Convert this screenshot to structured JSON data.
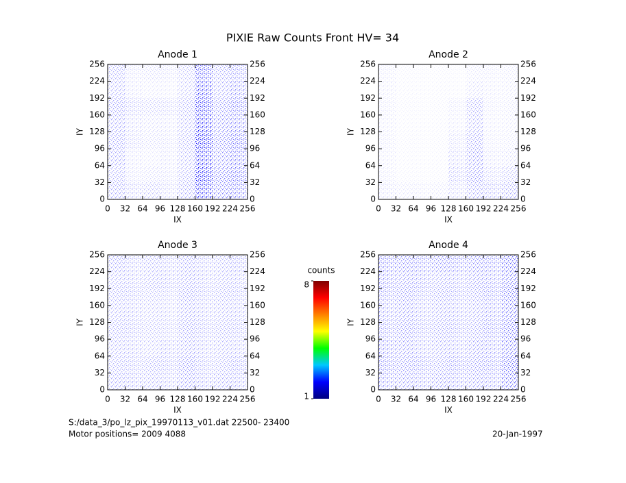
{
  "title": "PIXIE Raw Counts Front HV= 34",
  "colorbar": {
    "label": "counts",
    "lim": [
      1,
      8
    ],
    "ticks": [
      1,
      8
    ],
    "colormap": [
      "#00007f",
      "#0000ff",
      "#00c8ff",
      "#00ff00",
      "#ffff00",
      "#ff8000",
      "#ff0000",
      "#7f0000"
    ]
  },
  "footer": {
    "file": "S:/data_3/po_lz_pix_19970113_v01.dat   22500- 23400",
    "motor": "Motor positions= 2009 4088",
    "date": "20-Jan-1997"
  },
  "chart_data": [
    {
      "type": "heatmap",
      "title": "Anode 1",
      "xlabel": "IX",
      "ylabel": "IY",
      "color": "#0000ff",
      "xlim": [
        0,
        256
      ],
      "ylim": [
        0,
        256
      ],
      "xticks": [
        0,
        32,
        64,
        96,
        128,
        160,
        192,
        224,
        256
      ],
      "yticks": [
        0,
        32,
        64,
        96,
        128,
        160,
        192,
        224,
        256
      ],
      "values": [
        [
          0.35,
          0.25,
          0.25,
          0.2,
          0.35,
          0.85,
          0.5,
          0.55
        ],
        [
          0.3,
          0.15,
          0.15,
          0.15,
          0.3,
          0.9,
          0.5,
          0.55
        ],
        [
          0.35,
          0.15,
          0.1,
          0.15,
          0.3,
          0.85,
          0.45,
          0.55
        ],
        [
          0.35,
          0.2,
          0.15,
          0.15,
          0.3,
          0.9,
          0.45,
          0.55
        ],
        [
          0.35,
          0.2,
          0.15,
          0.15,
          0.3,
          0.85,
          0.45,
          0.5
        ],
        [
          0.35,
          0.25,
          0.2,
          0.2,
          0.3,
          0.8,
          0.4,
          0.5
        ],
        [
          0.3,
          0.15,
          0.1,
          0.1,
          0.25,
          0.75,
          0.35,
          0.45
        ],
        [
          0.3,
          0.15,
          0.15,
          0.15,
          0.25,
          0.65,
          0.35,
          0.4
        ]
      ]
    },
    {
      "type": "heatmap",
      "title": "Anode 2",
      "xlabel": "IX",
      "ylabel": "IY",
      "color": "#0000ff",
      "xlim": [
        0,
        256
      ],
      "ylim": [
        0,
        256
      ],
      "xticks": [
        0,
        32,
        64,
        96,
        128,
        160,
        192,
        224,
        256
      ],
      "yticks": [
        0,
        32,
        64,
        96,
        128,
        160,
        192,
        224,
        256
      ],
      "values": [
        [
          0.15,
          0.1,
          0.1,
          0.1,
          0.2,
          0.35,
          0.3,
          0.35
        ],
        [
          0.1,
          0.05,
          0.05,
          0.05,
          0.25,
          0.4,
          0.2,
          0.25
        ],
        [
          0.1,
          0.05,
          0.05,
          0.05,
          0.2,
          0.4,
          0.15,
          0.15
        ],
        [
          0.1,
          0.05,
          0.05,
          0.05,
          0.15,
          0.35,
          0.1,
          0.1
        ],
        [
          0.1,
          0.05,
          0.05,
          0.05,
          0.1,
          0.3,
          0.1,
          0.1
        ],
        [
          0.1,
          0.05,
          0.05,
          0.05,
          0.1,
          0.3,
          0.1,
          0.1
        ],
        [
          0.1,
          0.05,
          0.05,
          0.05,
          0.05,
          0.15,
          0.1,
          0.1
        ],
        [
          0.1,
          0.05,
          0.05,
          0.05,
          0.05,
          0.1,
          0.1,
          0.1
        ]
      ]
    },
    {
      "type": "heatmap",
      "title": "Anode 3",
      "xlabel": "IX",
      "ylabel": "IY",
      "color": "#0000ff",
      "xlim": [
        0,
        256
      ],
      "ylim": [
        0,
        256
      ],
      "xticks": [
        0,
        32,
        64,
        96,
        128,
        160,
        192,
        224,
        256
      ],
      "yticks": [
        0,
        32,
        64,
        96,
        128,
        160,
        192,
        224,
        256
      ],
      "values": [
        [
          0.35,
          0.35,
          0.3,
          0.3,
          0.4,
          0.35,
          0.35,
          0.35
        ],
        [
          0.3,
          0.3,
          0.3,
          0.3,
          0.4,
          0.3,
          0.3,
          0.35
        ],
        [
          0.3,
          0.3,
          0.25,
          0.3,
          0.35,
          0.3,
          0.3,
          0.3
        ],
        [
          0.3,
          0.3,
          0.25,
          0.25,
          0.35,
          0.3,
          0.3,
          0.3
        ],
        [
          0.3,
          0.3,
          0.25,
          0.25,
          0.35,
          0.3,
          0.3,
          0.3
        ],
        [
          0.3,
          0.3,
          0.25,
          0.25,
          0.35,
          0.3,
          0.3,
          0.3
        ],
        [
          0.3,
          0.3,
          0.3,
          0.3,
          0.35,
          0.3,
          0.3,
          0.3
        ],
        [
          0.35,
          0.3,
          0.3,
          0.3,
          0.35,
          0.3,
          0.3,
          0.35
        ]
      ]
    },
    {
      "type": "heatmap",
      "title": "Anode 4",
      "xlabel": "IX",
      "ylabel": "IY",
      "color": "#0000ff",
      "xlim": [
        0,
        256
      ],
      "ylim": [
        0,
        256
      ],
      "xticks": [
        0,
        32,
        64,
        96,
        128,
        160,
        192,
        224,
        256
      ],
      "yticks": [
        0,
        32,
        64,
        96,
        128,
        160,
        192,
        224,
        256
      ],
      "values": [
        [
          0.45,
          0.4,
          0.4,
          0.4,
          0.4,
          0.4,
          0.4,
          0.6
        ],
        [
          0.45,
          0.4,
          0.4,
          0.35,
          0.4,
          0.4,
          0.4,
          0.6
        ],
        [
          0.45,
          0.4,
          0.35,
          0.35,
          0.35,
          0.4,
          0.4,
          0.55
        ],
        [
          0.4,
          0.4,
          0.35,
          0.35,
          0.35,
          0.35,
          0.4,
          0.55
        ],
        [
          0.4,
          0.4,
          0.35,
          0.35,
          0.35,
          0.35,
          0.4,
          0.55
        ],
        [
          0.4,
          0.4,
          0.35,
          0.35,
          0.35,
          0.35,
          0.4,
          0.55
        ],
        [
          0.45,
          0.4,
          0.4,
          0.35,
          0.35,
          0.4,
          0.4,
          0.55
        ],
        [
          0.5,
          0.45,
          0.45,
          0.45,
          0.45,
          0.45,
          0.45,
          0.6
        ]
      ]
    }
  ]
}
